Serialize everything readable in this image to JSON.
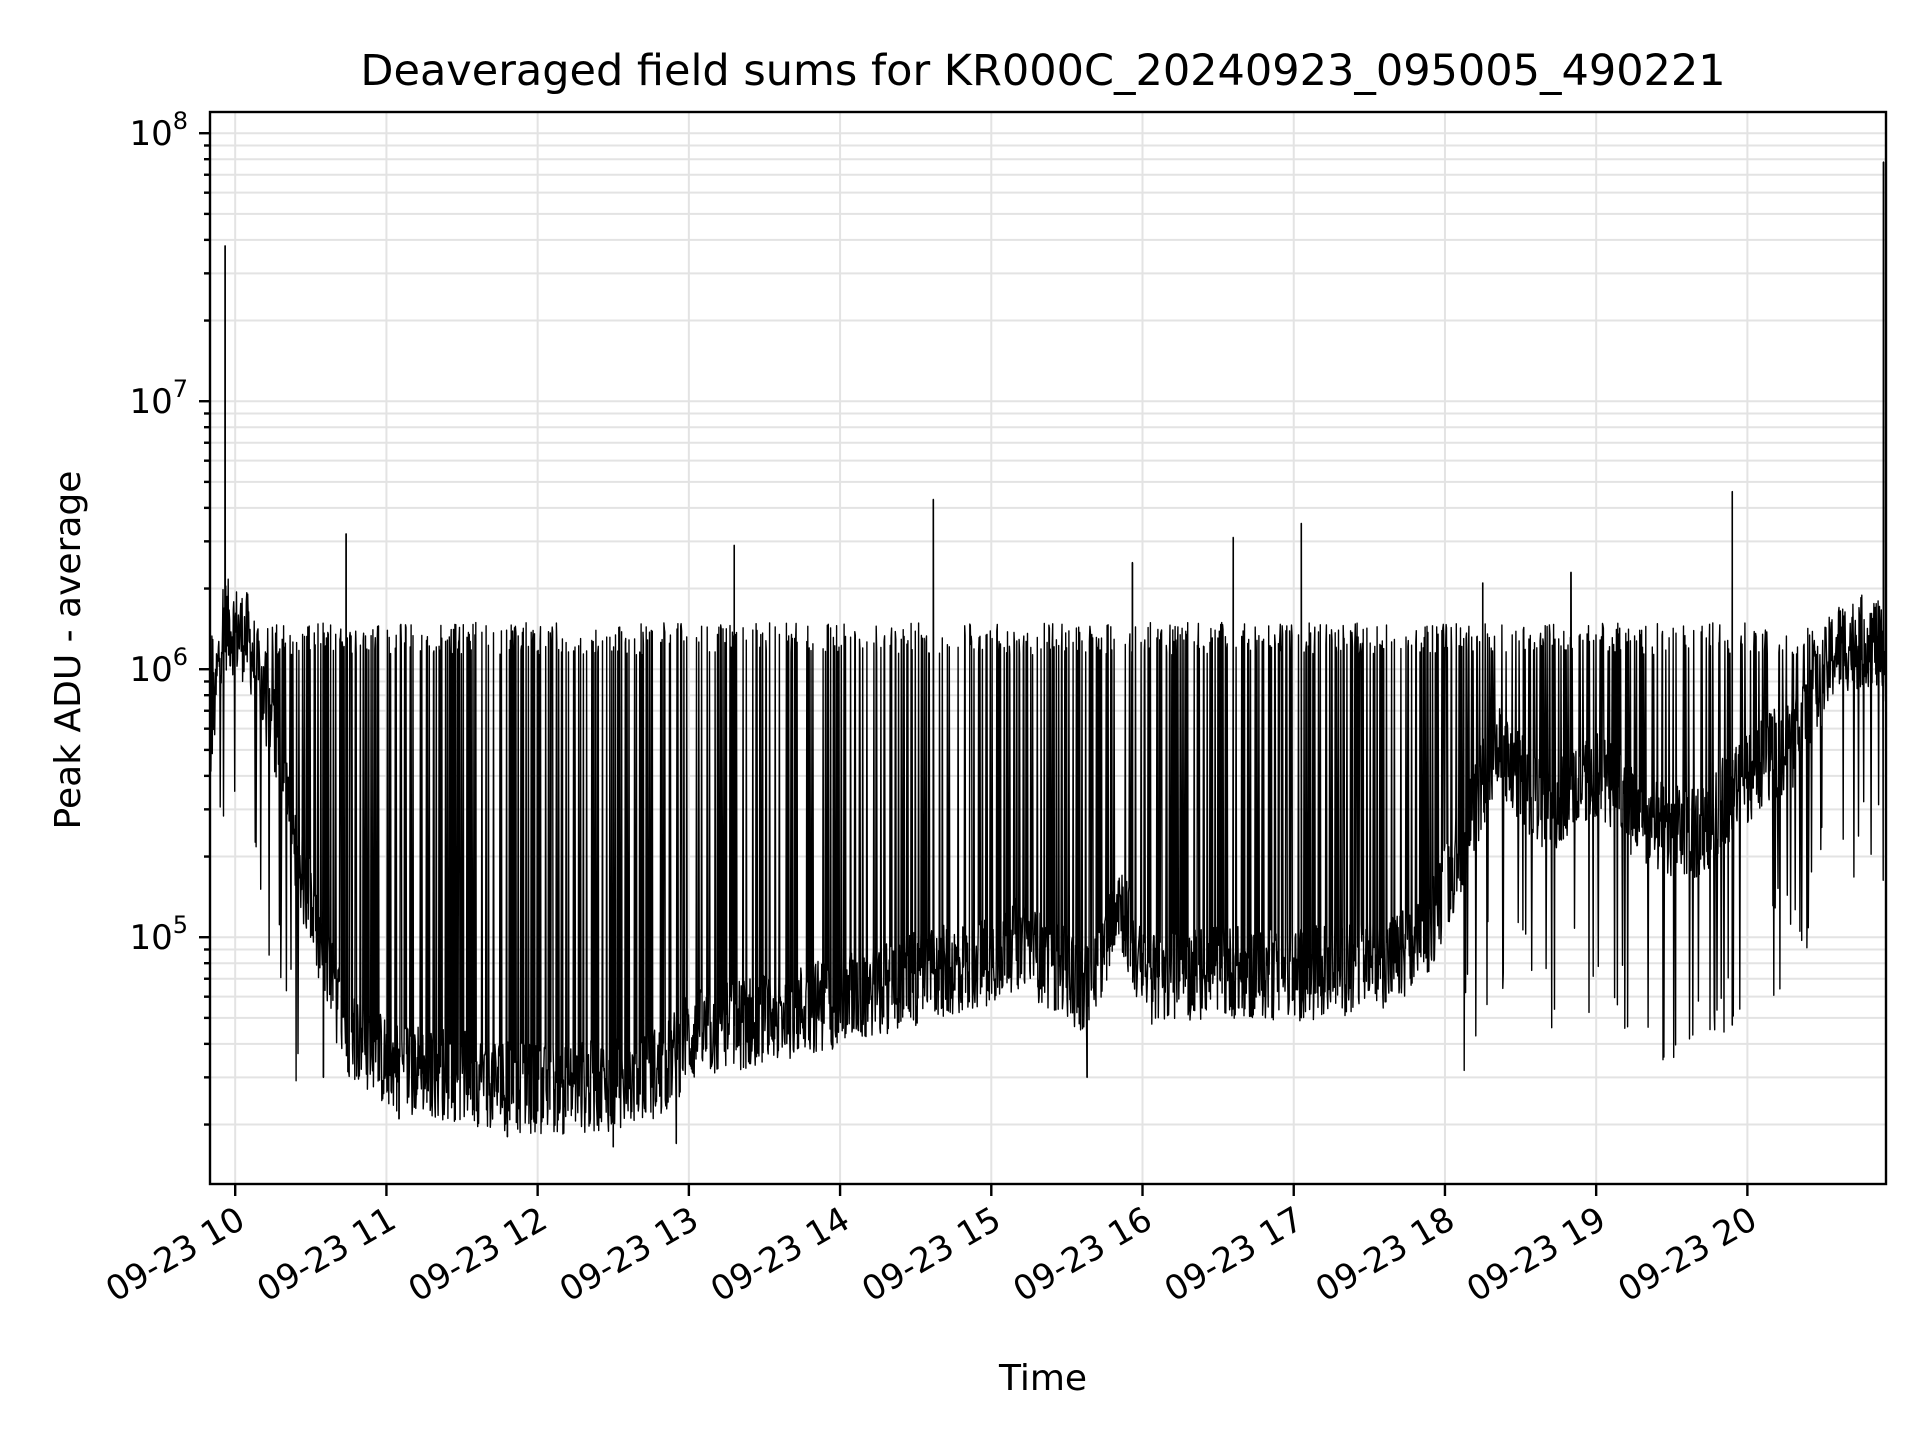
{
  "chart_data": {
    "type": "line",
    "title": "Deaveraged field sums for KR000C_20240923_095005_490221",
    "xlabel": "Time",
    "ylabel": "Peak ADU - average",
    "yscale": "log",
    "ylim": [
      12000,
      120000000
    ],
    "xlim": [
      "2024-09-23 09:50",
      "2024-09-23 20:55"
    ],
    "grid": true,
    "x_ticks": [
      {
        "t": "2024-09-23 10:00",
        "label": "09-23 10"
      },
      {
        "t": "2024-09-23 11:00",
        "label": "09-23 11"
      },
      {
        "t": "2024-09-23 12:00",
        "label": "09-23 12"
      },
      {
        "t": "2024-09-23 13:00",
        "label": "09-23 13"
      },
      {
        "t": "2024-09-23 14:00",
        "label": "09-23 14"
      },
      {
        "t": "2024-09-23 15:00",
        "label": "09-23 15"
      },
      {
        "t": "2024-09-23 16:00",
        "label": "09-23 16"
      },
      {
        "t": "2024-09-23 17:00",
        "label": "09-23 17"
      },
      {
        "t": "2024-09-23 18:00",
        "label": "09-23 18"
      },
      {
        "t": "2024-09-23 19:00",
        "label": "09-23 19"
      },
      {
        "t": "2024-09-23 20:00",
        "label": "09-23 20"
      }
    ],
    "y_ticks": [
      {
        "value": 100000,
        "base": "10",
        "exp": "5"
      },
      {
        "value": 1000000,
        "base": "10",
        "exp": "6"
      },
      {
        "value": 10000000,
        "base": "10",
        "exp": "7"
      },
      {
        "value": 100000000,
        "base": "10",
        "exp": "8"
      }
    ],
    "series": [
      {
        "color": "#000000",
        "baseline": [
          [
            "2024-09-23 09:50",
            500000
          ],
          [
            "2024-09-23 09:55",
            1500000
          ],
          [
            "2024-09-23 10:05",
            1300000
          ],
          [
            "2024-09-23 10:15",
            600000
          ],
          [
            "2024-09-23 10:25",
            200000
          ],
          [
            "2024-09-23 10:35",
            80000
          ],
          [
            "2024-09-23 10:45",
            45000
          ],
          [
            "2024-09-23 11:00",
            34000
          ],
          [
            "2024-09-23 11:30",
            30000
          ],
          [
            "2024-09-23 12:00",
            27000
          ],
          [
            "2024-09-23 12:30",
            28000
          ],
          [
            "2024-09-23 12:50",
            32000
          ],
          [
            "2024-09-23 13:00",
            42000
          ],
          [
            "2024-09-23 13:30",
            50000
          ],
          [
            "2024-09-23 14:00",
            58000
          ],
          [
            "2024-09-23 14:30",
            70000
          ],
          [
            "2024-09-23 14:55",
            80000
          ],
          [
            "2024-09-23 15:10",
            95000
          ],
          [
            "2024-09-23 15:25",
            78000
          ],
          [
            "2024-09-23 15:40",
            62000
          ],
          [
            "2024-09-23 15:50",
            150000
          ],
          [
            "2024-09-23 16:00",
            70000
          ],
          [
            "2024-09-23 16:30",
            75000
          ],
          [
            "2024-09-23 17:00",
            72000
          ],
          [
            "2024-09-23 17:30",
            78000
          ],
          [
            "2024-09-23 17:50",
            90000
          ],
          [
            "2024-09-23 18:00",
            150000
          ],
          [
            "2024-09-23 18:20",
            500000
          ],
          [
            "2024-09-23 18:40",
            300000
          ],
          [
            "2024-09-23 19:00",
            420000
          ],
          [
            "2024-09-23 19:20",
            260000
          ],
          [
            "2024-09-23 19:40",
            240000
          ],
          [
            "2024-09-23 20:00",
            400000
          ],
          [
            "2024-09-23 20:20",
            550000
          ],
          [
            "2024-09-23 20:35",
            1200000
          ],
          [
            "2024-09-23 20:50",
            1300000
          ],
          [
            "2024-09-23 20:54",
            1100000
          ]
        ],
        "peaks": [
          [
            "2024-09-23 09:56",
            38000000
          ],
          [
            "2024-09-23 10:44",
            3200000
          ],
          [
            "2024-09-23 13:18",
            2900000
          ],
          [
            "2024-09-23 14:37",
            4300000
          ],
          [
            "2024-09-23 15:56",
            2500000
          ],
          [
            "2024-09-23 16:36",
            3100000
          ],
          [
            "2024-09-23 17:03",
            3500000
          ],
          [
            "2024-09-23 18:15",
            2100000
          ],
          [
            "2024-09-23 18:50",
            2300000
          ],
          [
            "2024-09-23 19:54",
            4600000
          ],
          [
            "2024-09-23 20:54",
            78000000
          ]
        ],
        "troughs": [
          [
            "2024-09-23 10:35",
            30000
          ],
          [
            "2024-09-23 11:05",
            21000
          ],
          [
            "2024-09-23 11:48",
            18000
          ],
          [
            "2024-09-23 12:30",
            16500
          ],
          [
            "2024-09-23 12:55",
            17000
          ],
          [
            "2024-09-23 15:38",
            30000
          ],
          [
            "2024-09-23 19:54",
            47000
          ]
        ]
      }
    ]
  }
}
